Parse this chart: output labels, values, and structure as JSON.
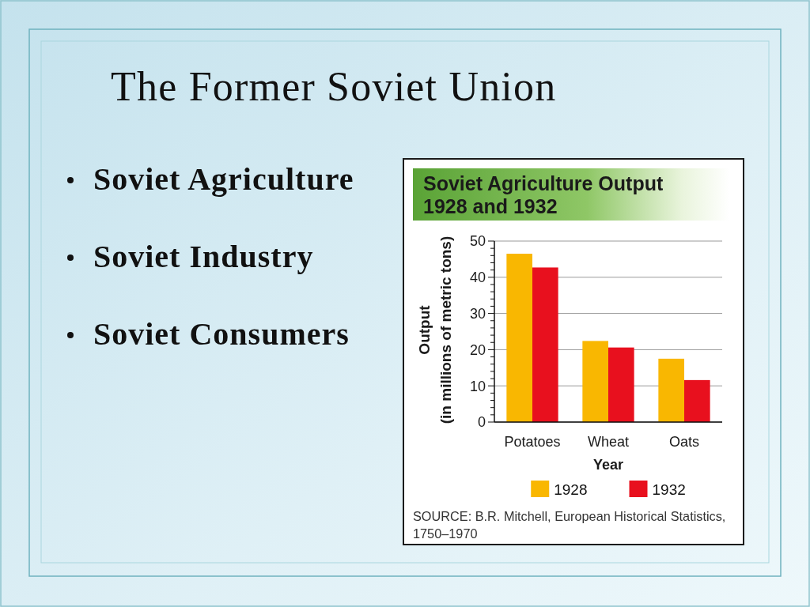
{
  "chart_data": [
    {
      "type": "other",
      "title": "The Former Soviet Union",
      "annotations": [
        "Soviet Agriculture",
        "Soviet Industry",
        "Soviet Consumers"
      ]
    },
    {
      "type": "bar",
      "title": "Soviet Agriculture Output\n1928 and 1932",
      "categories": [
        "Potatoes",
        "Wheat",
        "Oats"
      ],
      "series": [
        {
          "name": "1928",
          "color": "#f9b701",
          "values": [
            46.5,
            22.4,
            17.5
          ]
        },
        {
          "name": "1932",
          "color": "#e8101e",
          "values": [
            42.7,
            20.6,
            11.6
          ]
        }
      ],
      "xlabel": "Year",
      "ylabel": "Output\n(in millions of metric tons)",
      "ylim": [
        0,
        50
      ],
      "yticks": [
        0,
        {
          "value": 2,
          "label": null
        },
        {
          "value": 4,
          "label": null
        },
        {
          "value": 6,
          "label": null
        },
        {
          "value": 8,
          "label": null
        },
        10,
        {
          "value": 12,
          "label": null
        },
        {
          "value": 14,
          "label": null
        },
        {
          "value": 16,
          "label": null
        },
        {
          "value": 18,
          "label": null
        },
        20,
        {
          "value": 22,
          "label": null
        },
        {
          "value": 24,
          "label": null
        },
        {
          "value": 26,
          "label": null
        },
        {
          "value": 28,
          "label": null
        },
        30,
        {
          "value": 32,
          "label": null
        },
        {
          "value": 34,
          "label": null
        },
        {
          "value": 36,
          "label": null
        },
        {
          "value": 38,
          "label": null
        },
        40,
        {
          "value": 42,
          "label": null
        },
        {
          "value": 44,
          "label": null
        },
        {
          "value": 46,
          "label": null
        },
        {
          "value": 48,
          "label": null
        },
        50
      ],
      "grid": "y",
      "legend": "bottom",
      "annotations": [
        "SOURCE: B.R. Mitchell, European Historical Statistics,\n1750–1970"
      ]
    }
  ]
}
